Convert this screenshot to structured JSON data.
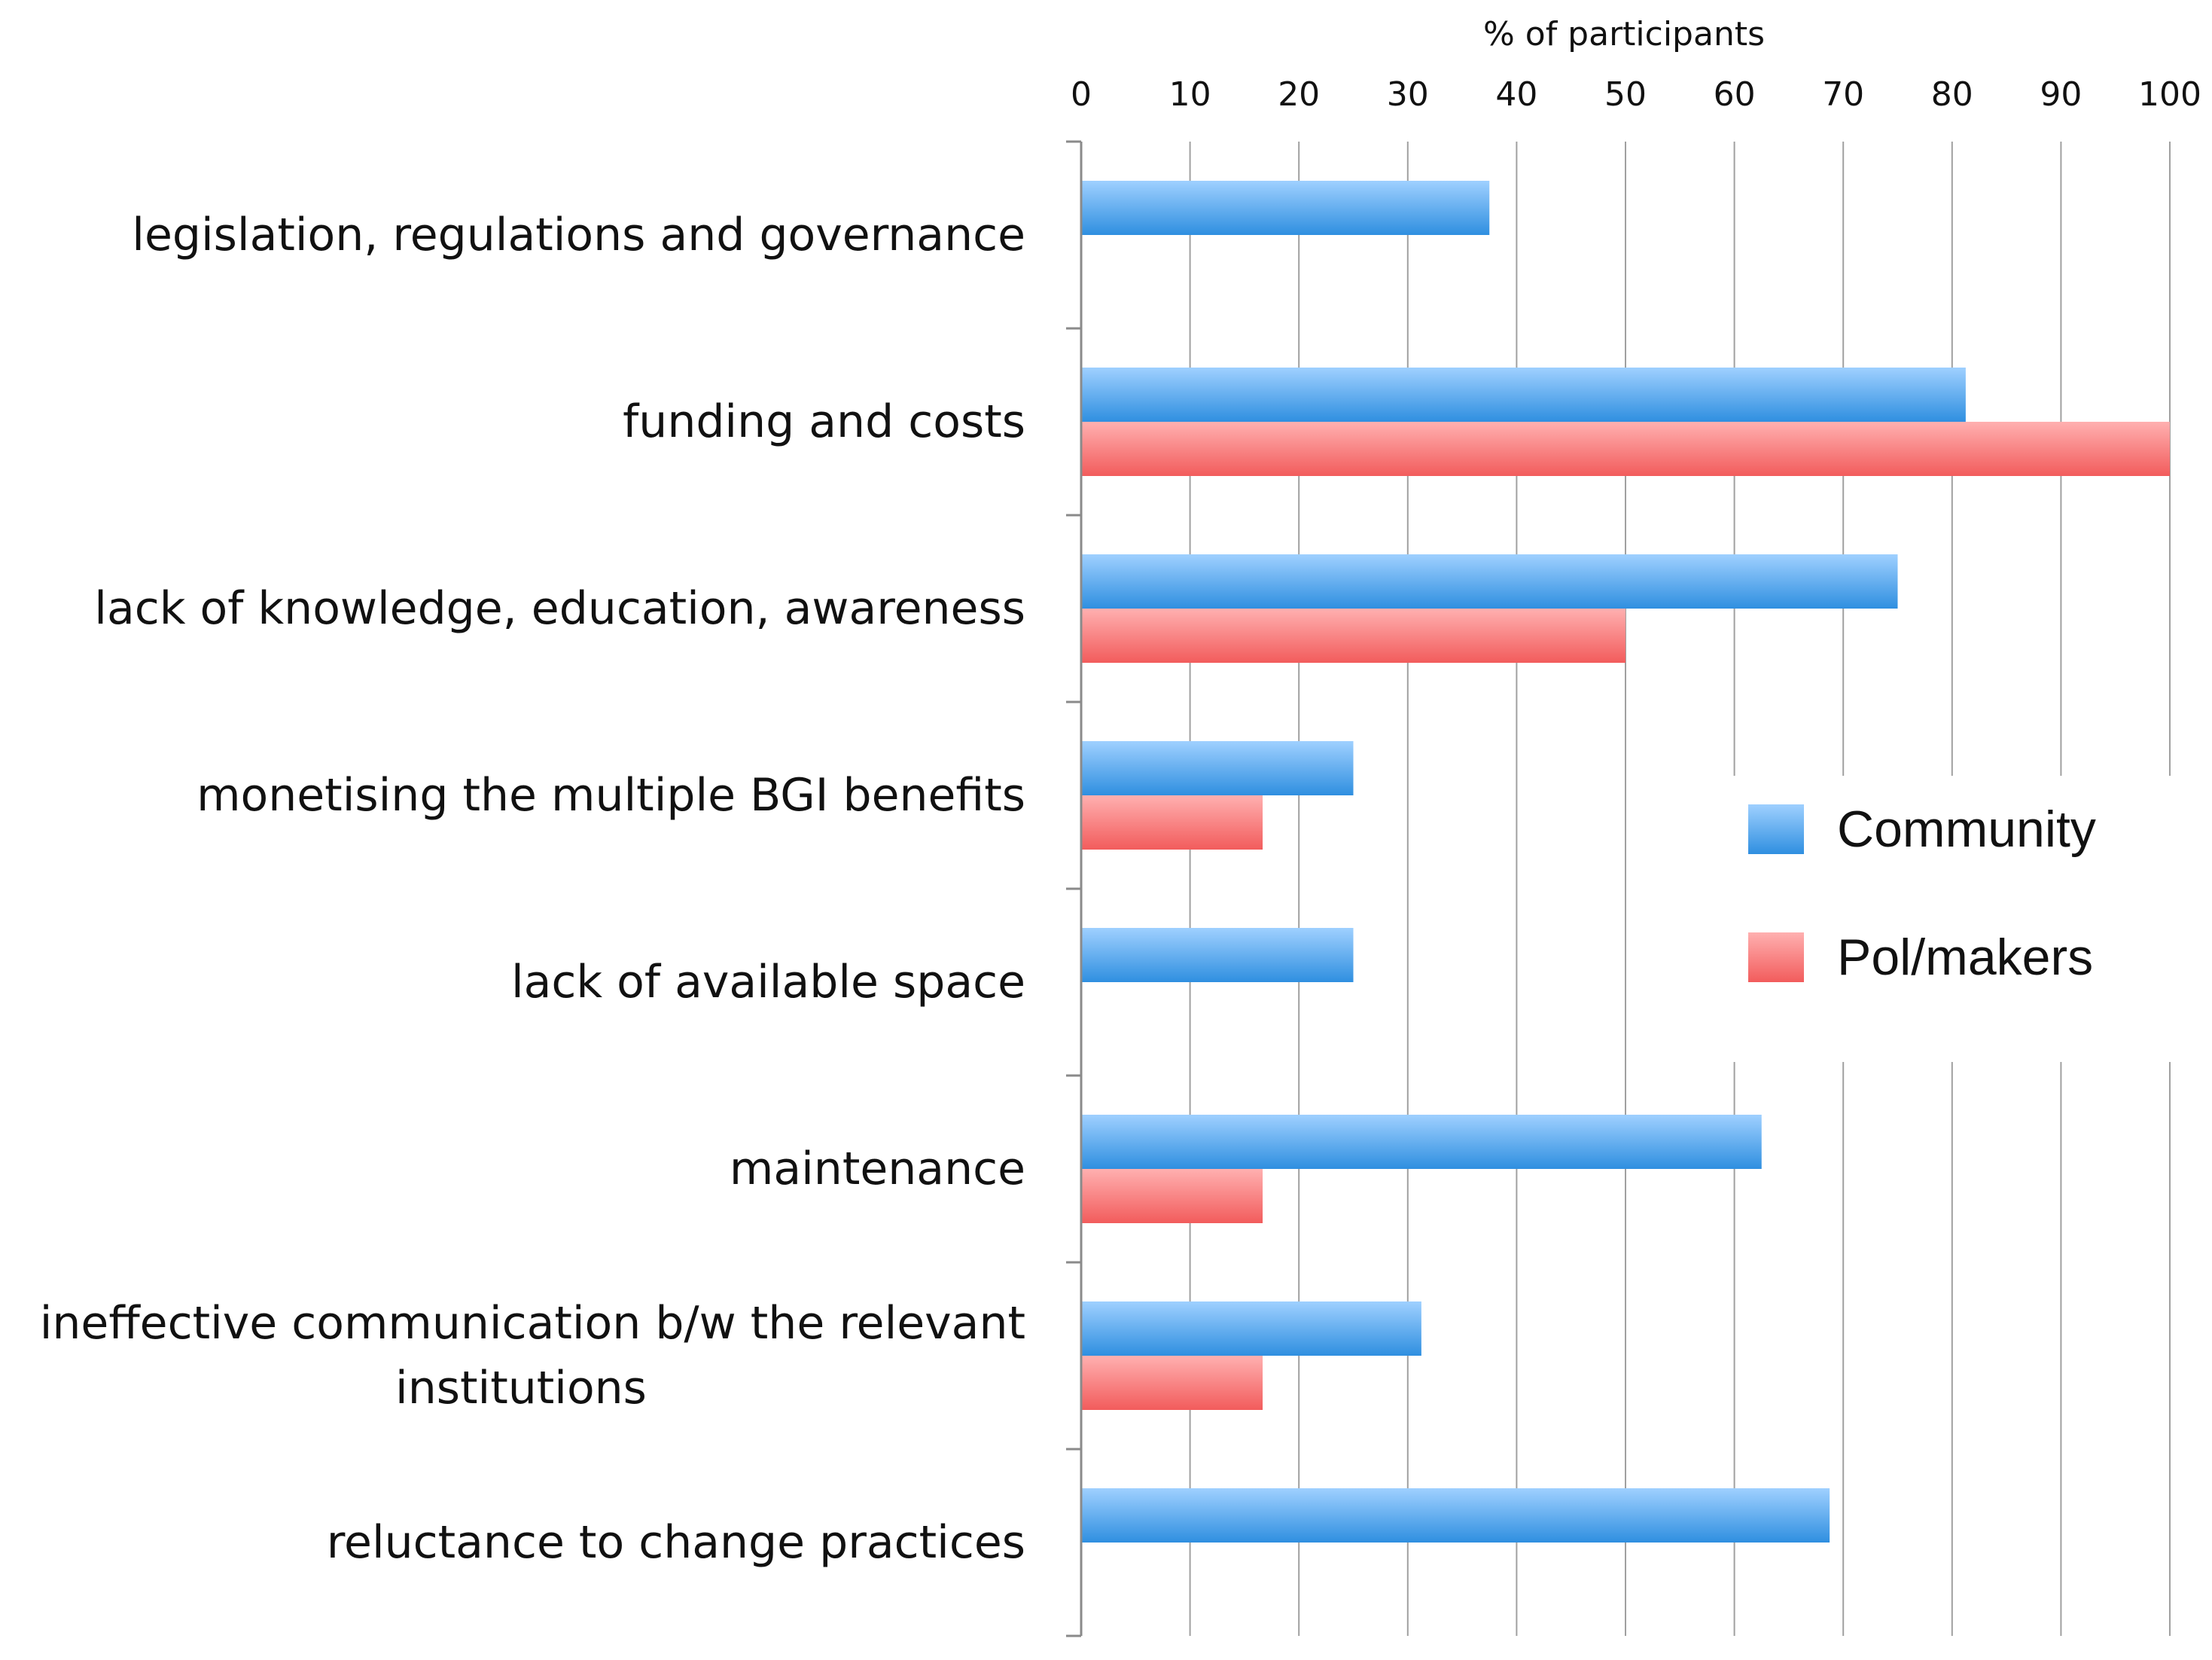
{
  "chart_data": {
    "type": "bar",
    "orientation": "horizontal",
    "title": "",
    "xlabel": "% of participants",
    "ylabel": "",
    "xlim": [
      0,
      100
    ],
    "xticks": [
      0,
      10,
      20,
      30,
      40,
      50,
      60,
      70,
      80,
      90,
      100
    ],
    "grid": "vertical",
    "legend_position": "right",
    "categories": [
      "legislation, regulations and governance",
      "funding and costs",
      "lack of knowledge, education, awareness",
      "monetising the multiple BGI benefits",
      "lack of available space",
      "maintenance",
      "ineffective communication b/w the relevant institutions",
      "reluctance to change practices"
    ],
    "category_lines": [
      [
        "legislation, regulations and governance"
      ],
      [
        "funding and costs"
      ],
      [
        "lack of knowledge, education, awareness"
      ],
      [
        "monetising the multiple BGI benefits"
      ],
      [
        "lack of available space"
      ],
      [
        "maintenance"
      ],
      [
        "ineffective communication b/w the relevant",
        "institutions"
      ],
      [
        "reluctance to change practices"
      ]
    ],
    "series": [
      {
        "name": "Community",
        "color": "#2f8fe0",
        "color_light": "#9fd0ff",
        "values": [
          37.5,
          81.25,
          75,
          25,
          25,
          62.5,
          31.25,
          68.75
        ]
      },
      {
        "name": "Pol/makers",
        "color": "#f25c5c",
        "color_light": "#ffb0b0",
        "values": [
          0,
          100,
          50,
          16.67,
          0,
          16.67,
          16.67,
          0
        ]
      }
    ]
  }
}
